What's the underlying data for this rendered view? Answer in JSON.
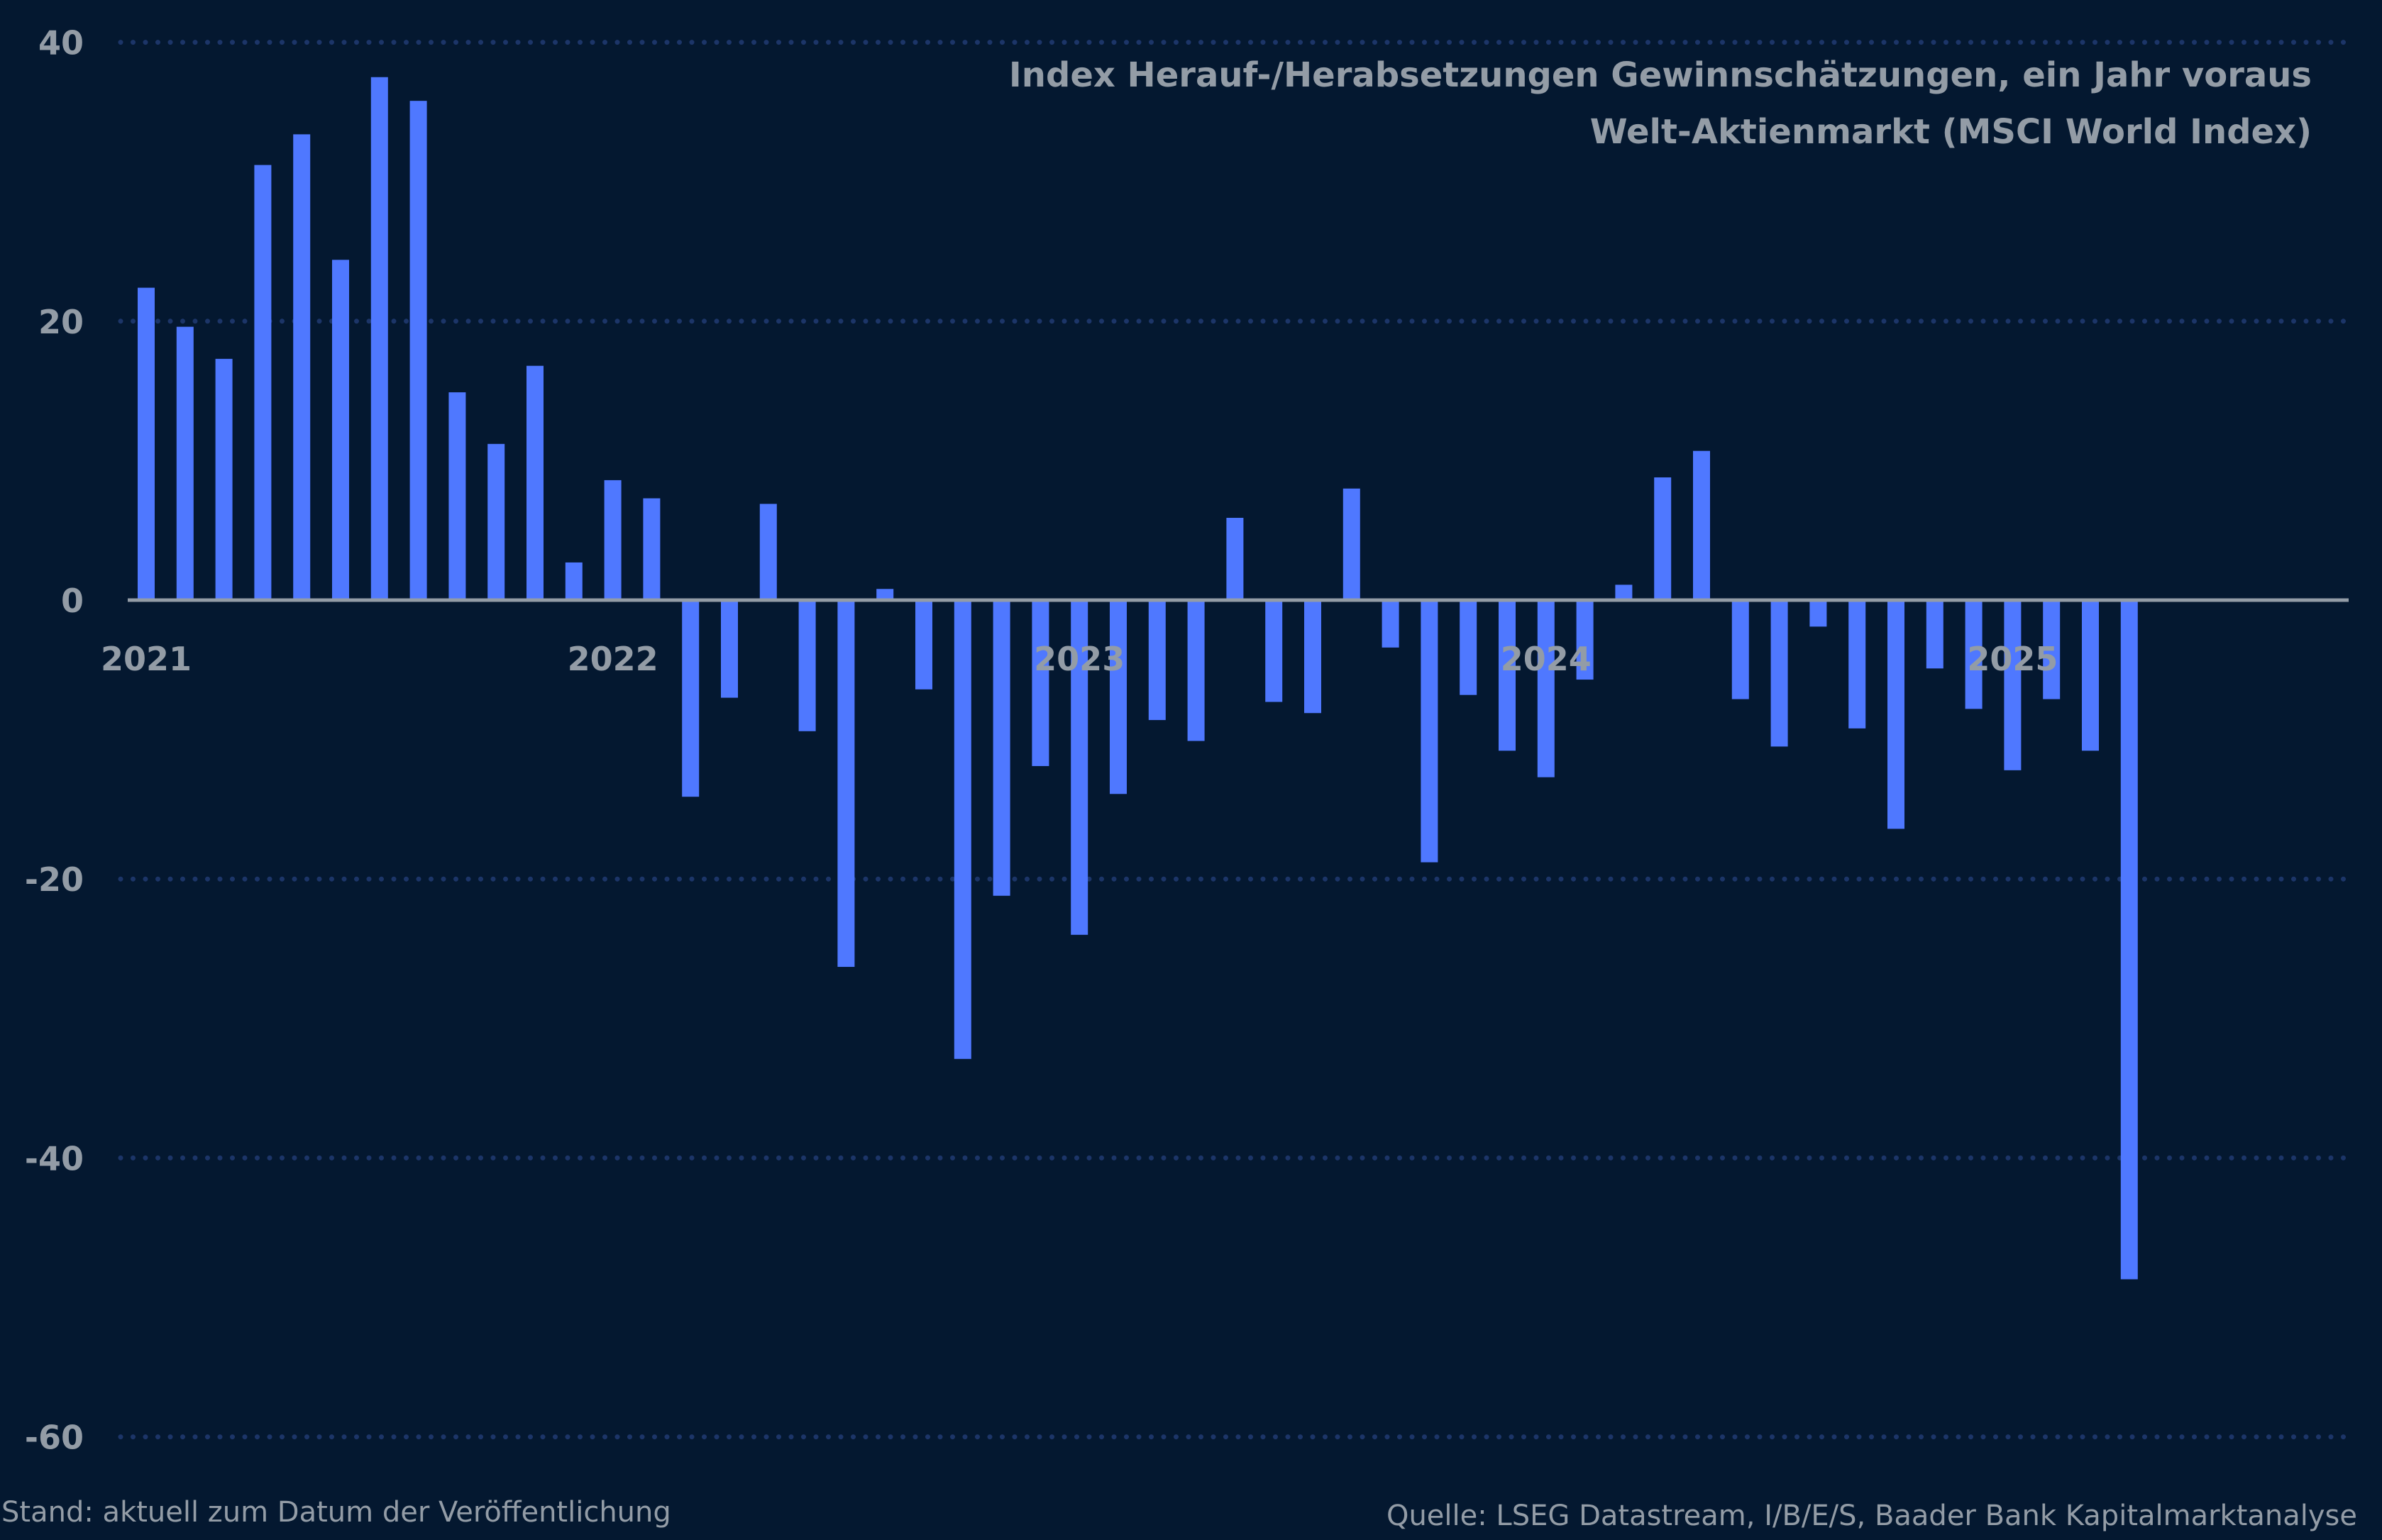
{
  "chart_data": {
    "type": "bar",
    "title": [
      "Index Herauf-/Herabsetzungen Gewinnschätzungen, ein Jahr voraus",
      "Welt-Aktienmarkt (MSCI World Index)"
    ],
    "xlabel": "",
    "ylabel": "",
    "ylim": [
      -60,
      40
    ],
    "yticks": [
      40,
      20,
      0,
      -20,
      -40,
      -60
    ],
    "xtick_labels": [
      "2021",
      "2022",
      "2023",
      "2024",
      "2025"
    ],
    "grid": true,
    "frequency": "monthly",
    "start": "2021-01",
    "values": [
      22.4,
      19.6,
      17.3,
      31.2,
      33.4,
      24.4,
      37.5,
      35.8,
      14.9,
      11.2,
      16.8,
      2.7,
      8.6,
      7.3,
      -14.1,
      -7.0,
      6.9,
      -9.4,
      -26.3,
      0.8,
      -6.4,
      -32.9,
      -21.2,
      -11.9,
      -24.0,
      -13.9,
      -8.6,
      -10.1,
      5.9,
      -7.3,
      -8.1,
      8.0,
      -3.4,
      -18.8,
      -6.8,
      -10.8,
      -12.7,
      -5.7,
      1.1,
      8.8,
      10.7,
      -7.1,
      -10.5,
      -1.9,
      -9.2,
      -16.4,
      -4.9,
      -7.8,
      -12.2,
      -7.1,
      -10.8,
      -48.7
    ],
    "colors": {
      "background": "#041830",
      "bar": "#4f78ff",
      "grid": "#1c3568",
      "text": "#939ca6",
      "zero_line": "#939ca6"
    }
  },
  "footer": {
    "left": "Stand: aktuell zum Datum der Veröffentlichung",
    "right": "Quelle: LSEG Datastream, I/B/E/S, Baader Bank Kapitalmarktanalyse"
  }
}
